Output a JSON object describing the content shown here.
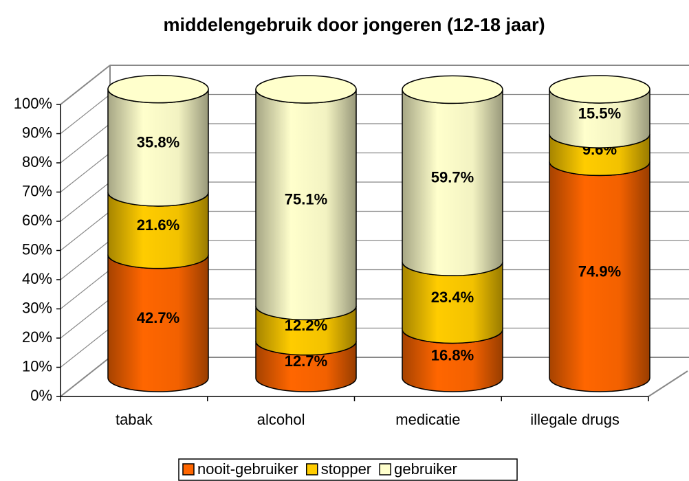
{
  "chart_data": {
    "type": "bar3d_stacked_cylinder",
    "title": "middelengebruik door jongeren (12-18 jaar)",
    "categories": [
      "tabak",
      "alcohol",
      "medicatie",
      "illegale drugs"
    ],
    "series": [
      {
        "name": "nooit-gebruiker",
        "color": "#ff6600",
        "values": [
          42.7,
          12.7,
          16.8,
          74.9
        ],
        "value_labels": [
          "42.7%",
          "12.7%",
          "16.8%",
          "74.9%"
        ]
      },
      {
        "name": "stopper",
        "color": "#ffcc00",
        "values": [
          21.6,
          12.2,
          23.4,
          9.6
        ],
        "value_labels": [
          "21.6%",
          "12.2%",
          "23.4%",
          "9.6%"
        ]
      },
      {
        "name": "gebruiker",
        "color": "#ffffcc",
        "values": [
          35.8,
          75.1,
          59.7,
          15.5
        ],
        "value_labels": [
          "35.8%",
          "75.1%",
          "59.7%",
          "15.5%"
        ]
      }
    ],
    "ylim": [
      0,
      100
    ],
    "yticks": [
      {
        "value": 0,
        "label": "0%"
      },
      {
        "value": 10,
        "label": "10%"
      },
      {
        "value": 20,
        "label": "20%"
      },
      {
        "value": 30,
        "label": "30%"
      },
      {
        "value": 40,
        "label": "40%"
      },
      {
        "value": 50,
        "label": "50%"
      },
      {
        "value": 60,
        "label": "60%"
      },
      {
        "value": 70,
        "label": "70%"
      },
      {
        "value": 80,
        "label": "80%"
      },
      {
        "value": 90,
        "label": "90%"
      },
      {
        "value": 100,
        "label": "100%"
      }
    ],
    "grid": true,
    "legend": "bottom"
  }
}
